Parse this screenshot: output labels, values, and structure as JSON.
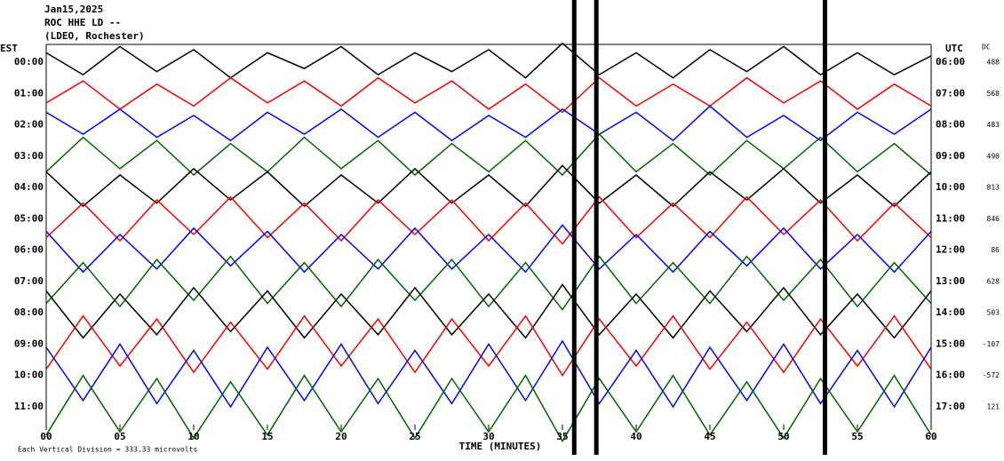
{
  "chart_data": {
    "type": "helicorder",
    "title_lines": [
      "Jan15,2025",
      "ROC HHE LD --",
      "(LDEO, Rochester)"
    ],
    "left_axis_label": "EST",
    "right_axis_label": "UTC",
    "dc_label": "DC",
    "x_label": "TIME (MINUTES)",
    "note": "Each Vertical Division =  333.33 microvolts",
    "xlim": [
      0,
      60
    ],
    "xticks": [
      {
        "value": 0,
        "label": "00"
      },
      {
        "value": 5,
        "label": "05"
      },
      10,
      15,
      20,
      25,
      30,
      35,
      40,
      45,
      50,
      55,
      60
    ],
    "categories": [
      "00:00",
      "01:00",
      "02:00",
      "03:00",
      "04:00",
      "05:00",
      "06:00",
      "07:00",
      "08:00",
      "09:00",
      "10:00",
      "11:00"
    ],
    "utc_labels": [
      "06:00",
      "07:00",
      "08:00",
      "09:00",
      "10:00",
      "11:00",
      "12:00",
      "13:00",
      "14:00",
      "15:00",
      "16:00",
      "17:00"
    ],
    "dc_values": [
      488,
      568,
      483,
      490,
      813,
      846,
      86,
      628,
      503,
      -107,
      -572,
      121
    ],
    "bursts": [
      35.8,
      37.3,
      52.8
    ],
    "x": [
      0,
      2.5,
      5,
      7.5,
      10,
      12.5,
      15,
      17.5,
      20,
      22.5,
      25,
      27.5,
      30,
      32.5,
      35,
      37.5,
      40,
      42.5,
      45,
      47.5,
      50,
      52.5,
      55,
      57.5,
      60
    ],
    "series": [
      {
        "color": "#000000",
        "values": [
          0.3,
          -0.4,
          0.5,
          -0.3,
          0.4,
          -0.5,
          0.3,
          -0.2,
          0.5,
          -0.4,
          0.3,
          -0.3,
          0.4,
          -0.5,
          0.6,
          -0.4,
          0.3,
          -0.5,
          0.4,
          -0.3,
          0.5,
          -0.4,
          0.3,
          -0.4,
          0.2
        ]
      },
      {
        "color": "#ff0000",
        "values": [
          -0.3,
          0.4,
          -0.5,
          0.3,
          -0.4,
          0.5,
          -0.3,
          0.4,
          -0.4,
          0.5,
          -0.3,
          0.4,
          -0.5,
          0.3,
          -0.6,
          0.5,
          -0.4,
          0.3,
          -0.4,
          0.5,
          -0.3,
          0.4,
          -0.5,
          0.3,
          -0.4
        ]
      },
      {
        "color": "#0000ff",
        "values": [
          0.4,
          -0.3,
          0.5,
          -0.4,
          0.3,
          -0.5,
          0.4,
          -0.3,
          0.5,
          -0.4,
          0.4,
          -0.5,
          0.3,
          -0.4,
          0.5,
          -0.3,
          0.4,
          -0.5,
          0.6,
          -0.4,
          0.3,
          -0.5,
          0.4,
          -0.3,
          0.5
        ]
      },
      {
        "color": "#006400",
        "values": [
          -0.5,
          0.6,
          -0.4,
          0.5,
          -0.6,
          0.4,
          -0.5,
          0.6,
          -0.4,
          0.5,
          -0.6,
          0.4,
          -0.5,
          0.5,
          -0.6,
          0.7,
          -0.5,
          0.4,
          -0.6,
          0.5,
          -0.4,
          0.6,
          -0.5,
          0.4,
          -0.6
        ]
      },
      {
        "color": "#000000",
        "values": [
          0.5,
          -0.6,
          0.4,
          -0.5,
          0.6,
          -0.4,
          0.5,
          -0.6,
          0.4,
          -0.5,
          0.6,
          -0.5,
          0.4,
          -0.6,
          0.7,
          -0.5,
          0.4,
          -0.6,
          0.5,
          -0.4,
          0.6,
          -0.5,
          0.4,
          -0.6,
          0.5
        ]
      },
      {
        "color": "#ff0000",
        "values": [
          -0.6,
          0.5,
          -0.7,
          0.6,
          -0.5,
          0.7,
          -0.6,
          0.5,
          -0.7,
          0.6,
          -0.5,
          0.6,
          -0.7,
          0.5,
          -0.8,
          0.7,
          -0.6,
          0.5,
          -0.6,
          0.7,
          -0.5,
          0.6,
          -0.7,
          0.5,
          -0.6
        ]
      },
      {
        "color": "#0000ff",
        "values": [
          0.6,
          -0.7,
          0.5,
          -0.6,
          0.7,
          -0.5,
          0.6,
          -0.7,
          0.5,
          -0.6,
          0.7,
          -0.6,
          0.5,
          -0.7,
          0.8,
          -0.6,
          0.5,
          -0.7,
          0.6,
          -0.5,
          0.7,
          -0.6,
          0.5,
          -0.7,
          0.6
        ]
      },
      {
        "color": "#006400",
        "values": [
          -0.7,
          0.6,
          -0.8,
          0.7,
          -0.6,
          0.8,
          -0.7,
          0.6,
          -0.8,
          0.7,
          -0.6,
          0.7,
          -0.8,
          0.6,
          -0.9,
          0.8,
          -0.7,
          0.6,
          -0.7,
          0.8,
          -0.6,
          0.7,
          -0.8,
          0.6,
          -0.7
        ]
      },
      {
        "color": "#000000",
        "values": [
          0.7,
          -0.8,
          0.6,
          -0.7,
          0.8,
          -0.6,
          0.7,
          -0.8,
          0.6,
          -0.7,
          0.8,
          -0.7,
          0.6,
          -0.8,
          0.9,
          -0.7,
          0.6,
          -0.8,
          0.7,
          -0.6,
          0.8,
          -0.7,
          0.6,
          -0.8,
          0.7
        ]
      },
      {
        "color": "#ff0000",
        "values": [
          -0.8,
          0.9,
          -0.7,
          0.8,
          -0.9,
          0.7,
          -0.8,
          0.9,
          -0.7,
          0.8,
          -0.9,
          0.8,
          -0.7,
          0.9,
          -1.0,
          0.8,
          -0.7,
          0.9,
          -0.8,
          0.7,
          -0.9,
          0.8,
          -0.7,
          0.9,
          -0.8
        ]
      },
      {
        "color": "#0000ff",
        "values": [
          0.9,
          -0.8,
          1.0,
          -0.9,
          0.8,
          -1.0,
          0.9,
          -0.8,
          1.0,
          -0.9,
          0.8,
          -0.9,
          1.0,
          -0.8,
          1.1,
          -0.9,
          0.8,
          -1.0,
          0.9,
          -0.8,
          1.0,
          -0.9,
          0.8,
          -1.0,
          0.9
        ]
      },
      {
        "color": "#006400",
        "values": [
          -0.9,
          1.0,
          -0.8,
          0.9,
          -1.0,
          0.8,
          -0.9,
          1.0,
          -0.8,
          0.9,
          -1.0,
          0.9,
          -0.8,
          1.0,
          -1.1,
          0.9,
          -0.8,
          1.0,
          -0.9,
          0.8,
          -1.0,
          0.9,
          -0.8,
          1.0,
          -0.9
        ]
      }
    ]
  }
}
